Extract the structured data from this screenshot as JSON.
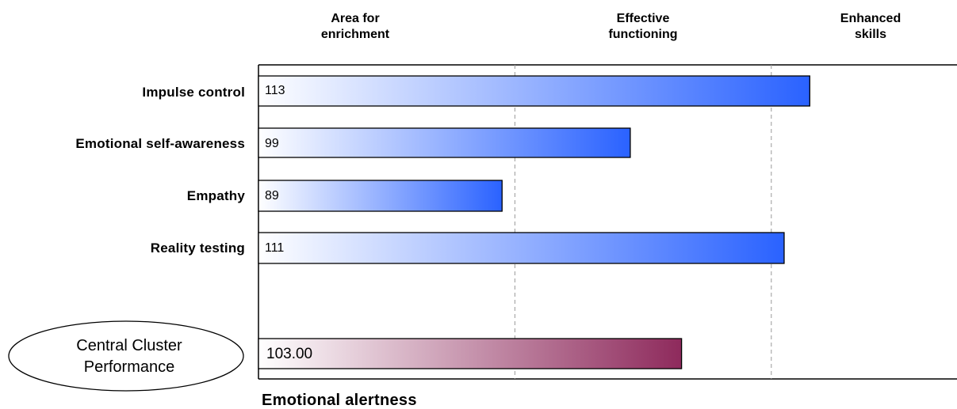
{
  "chart_data": {
    "type": "bar",
    "orientation": "horizontal",
    "zones": [
      {
        "label_lines": [
          "Area for",
          "enrichment"
        ],
        "range": [
          70,
          90
        ]
      },
      {
        "label_lines": [
          "Effective",
          "functioning"
        ],
        "range": [
          90,
          110
        ]
      },
      {
        "label_lines": [
          "Enhanced",
          "skills"
        ],
        "range": [
          110,
          130
        ]
      }
    ],
    "xlim": [
      70,
      130
    ],
    "dividers": [
      90,
      110
    ],
    "categories": [
      "Impulse control",
      "Emotional self-awareness",
      "Empathy",
      "Reality testing"
    ],
    "values": [
      113,
      99,
      89,
      111
    ],
    "value_labels": [
      "113",
      "99",
      "89",
      "111"
    ],
    "bar_color": "#2a62ff",
    "summary": {
      "label_lines": [
        "Central Cluster",
        "Performance"
      ],
      "value": 103.0,
      "value_label": "103.00",
      "color": "#8e2a5c"
    },
    "footer": "Emotional alertness"
  }
}
